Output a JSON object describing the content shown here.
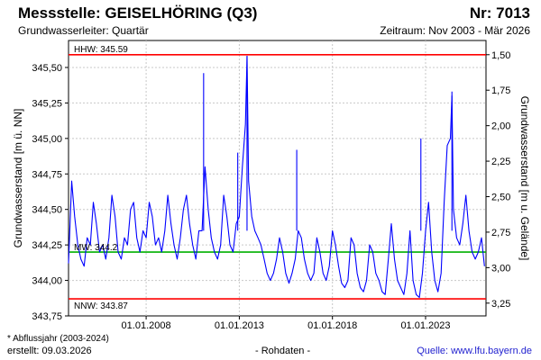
{
  "header": {
    "title": "Messstelle: GEISELHÖRING (Q3)",
    "station_nr": "Nr: 7013",
    "subtitle": "Grundwasserleiter: Quartär",
    "period": "Zeitraum: Nov 2003 - Mär 2026"
  },
  "footer": {
    "footnote": "* Abflussjahr (2003-2024)",
    "created": "erstellt:  09.03.2026",
    "raw_label": "- Rohdaten -",
    "source": "Quelle: www.lfu.bayern.de"
  },
  "colors": {
    "series": "#0000ff",
    "hhw": "#ff0000",
    "nnw": "#ff0000",
    "mw": "#00b000",
    "grid": "#c8c8c8"
  },
  "chart_data": {
    "type": "line",
    "ylabel_left": "Grundwasserstand [m ü. NN]",
    "ylabel_right": "Grundwasserstand [m u. Gelände]",
    "ylim": [
      343.75,
      345.69
    ],
    "xlim": [
      "2003-11-01",
      "2026-03-31"
    ],
    "right_axis_zero_elevation": 347.09,
    "yticks": [
      343.75,
      344.0,
      344.25,
      344.5,
      344.75,
      345.0,
      345.25,
      345.5
    ],
    "ytick_labels": [
      "343,75",
      "344,00",
      "344,25",
      "344,50",
      "344,75",
      "345,00",
      "345,25",
      "345,50"
    ],
    "right_ticks": [
      1.5,
      1.75,
      2.0,
      2.25,
      2.5,
      2.75,
      3.0,
      3.25
    ],
    "right_tick_labels": [
      "1,50",
      "1,75",
      "2,00",
      "2,25",
      "2,50",
      "2,75",
      "3,00",
      "3,25"
    ],
    "xticks": [
      "2008-01-01",
      "2013-01-01",
      "2018-01-01",
      "2023-01-01"
    ],
    "xtick_labels": [
      "01.01.2008",
      "01.01.2013",
      "01.01.2018",
      "01.01.2023"
    ],
    "grid": true,
    "reference_lines": [
      {
        "label": "HHW: 345.59",
        "value": 345.59,
        "kind": "hhw"
      },
      {
        "label": "MW: 344.2",
        "value": 344.2,
        "kind": "mw"
      },
      {
        "label": "NNW: 343.87",
        "value": 343.87,
        "kind": "nnw"
      }
    ],
    "series": [
      {
        "x": [
          "2003-11-01",
          "2004-01-01",
          "2004-03-01",
          "2004-05-01",
          "2004-07-01",
          "2004-09-01",
          "2004-11-01",
          "2005-01-01",
          "2005-03-01",
          "2005-05-01",
          "2005-07-01",
          "2005-09-01",
          "2005-11-01",
          "2006-01-01",
          "2006-03-01",
          "2006-05-01",
          "2006-07-01",
          "2006-09-01",
          "2006-11-01",
          "2007-01-01",
          "2007-03-01",
          "2007-05-01",
          "2007-07-01",
          "2007-09-01",
          "2007-11-01",
          "2008-01-01",
          "2008-03-01",
          "2008-05-01",
          "2008-07-01",
          "2008-09-01",
          "2008-11-01",
          "2009-01-01",
          "2009-03-01",
          "2009-05-01",
          "2009-07-01",
          "2009-09-01",
          "2009-11-01",
          "2010-01-01",
          "2010-03-01",
          "2010-05-01",
          "2010-07-01",
          "2010-09-01",
          "2010-11-01",
          "2011-01-01",
          "2011-03-01",
          "2011-05-01",
          "2011-07-01",
          "2011-09-01",
          "2011-11-01",
          "2012-01-01",
          "2012-03-01",
          "2012-05-01",
          "2012-07-01",
          "2012-09-01",
          "2012-11-01",
          "2013-01-01",
          "2013-03-01",
          "2013-05-01",
          "2013-06-01",
          "2013-07-01",
          "2013-09-01",
          "2013-11-01",
          "2014-01-01",
          "2014-03-01",
          "2014-05-01",
          "2014-07-01",
          "2014-09-01",
          "2014-11-01",
          "2015-01-01",
          "2015-03-01",
          "2015-05-01",
          "2015-07-01",
          "2015-09-01",
          "2015-11-01",
          "2016-01-01",
          "2016-03-01",
          "2016-05-01",
          "2016-07-01",
          "2016-09-01",
          "2016-11-01",
          "2017-01-01",
          "2017-03-01",
          "2017-05-01",
          "2017-07-01",
          "2017-09-01",
          "2017-11-01",
          "2018-01-01",
          "2018-03-01",
          "2018-05-01",
          "2018-07-01",
          "2018-09-01",
          "2018-11-01",
          "2019-01-01",
          "2019-03-01",
          "2019-05-01",
          "2019-07-01",
          "2019-09-01",
          "2019-11-01",
          "2020-01-01",
          "2020-03-01",
          "2020-05-01",
          "2020-07-01",
          "2020-09-01",
          "2020-11-01",
          "2021-01-01",
          "2021-03-01",
          "2021-05-01",
          "2021-07-01",
          "2021-09-01",
          "2021-11-01",
          "2022-01-01",
          "2022-03-01",
          "2022-05-01",
          "2022-07-01",
          "2022-09-01",
          "2022-11-01",
          "2023-01-01",
          "2023-03-01",
          "2023-05-01",
          "2023-07-01",
          "2023-09-01",
          "2023-11-01",
          "2024-01-01",
          "2024-03-01",
          "2024-05-01",
          "2024-06-01",
          "2024-07-01",
          "2024-09-01",
          "2024-11-01",
          "2025-01-01",
          "2025-03-01",
          "2025-05-01",
          "2025-07-01",
          "2025-09-01",
          "2025-11-01",
          "2026-01-01",
          "2026-03-01"
        ],
        "y": [
          344.12,
          344.7,
          344.45,
          344.25,
          344.15,
          344.1,
          344.3,
          344.25,
          344.55,
          344.4,
          344.2,
          344.25,
          344.15,
          344.3,
          344.6,
          344.45,
          344.2,
          344.15,
          344.3,
          344.25,
          344.5,
          344.55,
          344.3,
          344.2,
          344.35,
          344.3,
          344.55,
          344.45,
          344.25,
          344.3,
          344.2,
          344.35,
          344.6,
          344.4,
          344.25,
          344.15,
          344.3,
          344.5,
          344.6,
          344.4,
          344.25,
          344.15,
          344.35,
          344.35,
          344.8,
          344.5,
          344.3,
          344.2,
          344.15,
          344.25,
          344.6,
          344.45,
          344.25,
          344.2,
          344.4,
          344.45,
          344.8,
          345.1,
          345.58,
          344.7,
          344.45,
          344.35,
          344.3,
          344.25,
          344.15,
          344.05,
          344.0,
          344.05,
          344.15,
          344.3,
          344.2,
          344.05,
          343.98,
          344.05,
          344.15,
          344.35,
          344.3,
          344.15,
          344.05,
          344.0,
          344.05,
          344.3,
          344.2,
          344.05,
          344.0,
          344.1,
          344.35,
          344.25,
          344.1,
          343.98,
          343.95,
          344.0,
          344.3,
          344.25,
          344.05,
          343.95,
          343.92,
          344.0,
          344.25,
          344.2,
          344.05,
          344.0,
          343.92,
          343.9,
          344.15,
          344.4,
          344.15,
          344.0,
          343.95,
          343.9,
          344.05,
          344.35,
          344.0,
          343.9,
          343.88,
          344.05,
          344.35,
          344.55,
          344.2,
          344.0,
          343.92,
          344.05,
          344.55,
          344.95,
          345.0,
          345.3,
          344.5,
          344.3,
          344.25,
          344.4,
          344.6,
          344.35,
          344.2,
          344.15,
          344.2,
          344.3,
          344.1
        ]
      }
    ],
    "spikes": [
      {
        "x": "2011-02-01",
        "y": 345.46
      },
      {
        "x": "2012-12-01",
        "y": 344.9
      },
      {
        "x": "2013-06-01",
        "y": 345.58
      },
      {
        "x": "2016-02-01",
        "y": 344.92
      },
      {
        "x": "2022-10-01",
        "y": 345.0
      },
      {
        "x": "2024-06-01",
        "y": 345.33
      }
    ]
  }
}
